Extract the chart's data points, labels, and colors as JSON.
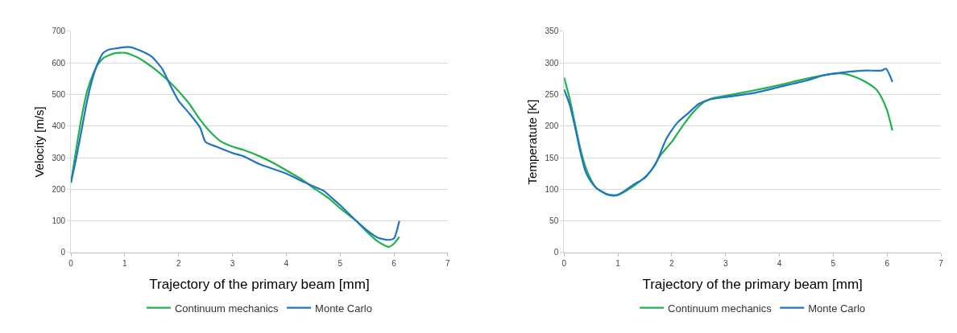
{
  "chart_data": [
    {
      "type": "line",
      "xlabel": "Trajectory of the primary beam [mm]",
      "ylabel": "Velocity [m/s]",
      "xlim": [
        0,
        7
      ],
      "xticks": [
        0,
        1,
        2,
        3,
        4,
        5,
        6,
        7
      ],
      "ylim": [
        0,
        700
      ],
      "yticks": [
        0,
        100,
        200,
        300,
        400,
        500,
        600,
        700
      ],
      "grid": "y",
      "legend": "bottom",
      "marker": "none",
      "line_style": "solid",
      "series": [
        {
          "name": "Continuum mechanics",
          "color": "#22b14c",
          "x": [
            0,
            0.1,
            0.2,
            0.3,
            0.4,
            0.5,
            0.6,
            0.8,
            1.0,
            1.2,
            1.4,
            1.6,
            1.8,
            2.0,
            2.2,
            2.4,
            2.6,
            2.8,
            3.0,
            3.2,
            3.5,
            3.8,
            4.0,
            4.3,
            4.5,
            4.8,
            5.0,
            5.3,
            5.5,
            5.7,
            5.9,
            6.0,
            6.1
          ],
          "values": [
            220,
            330,
            430,
            510,
            560,
            595,
            615,
            630,
            632,
            620,
            600,
            575,
            545,
            510,
            470,
            420,
            380,
            350,
            335,
            325,
            305,
            280,
            260,
            230,
            205,
            170,
            140,
            100,
            65,
            35,
            18,
            28,
            50
          ]
        },
        {
          "name": "Monte Carlo",
          "color": "#1f74c4",
          "x": [
            0,
            0.1,
            0.2,
            0.3,
            0.4,
            0.5,
            0.6,
            0.7,
            0.8,
            1.0,
            1.1,
            1.3,
            1.5,
            1.7,
            1.8,
            2.0,
            2.2,
            2.4,
            2.5,
            2.7,
            3.0,
            3.2,
            3.5,
            3.8,
            4.0,
            4.3,
            4.5,
            4.7,
            4.8,
            5.0,
            5.3,
            5.5,
            5.7,
            5.9,
            6.0,
            6.1
          ],
          "values": [
            222,
            300,
            390,
            480,
            550,
            600,
            632,
            642,
            645,
            650,
            650,
            638,
            620,
            580,
            545,
            480,
            440,
            395,
            350,
            335,
            315,
            305,
            280,
            262,
            250,
            225,
            210,
            195,
            180,
            150,
            100,
            70,
            47,
            40,
            45,
            100
          ]
        }
      ]
    },
    {
      "type": "line",
      "xlabel": "Trajectory of the primary beam [mm]",
      "ylabel": "Temperatute [K]",
      "xlim": [
        0,
        7
      ],
      "xticks": [
        0,
        1,
        2,
        3,
        4,
        5,
        6,
        7
      ],
      "ylim": [
        0,
        350
      ],
      "yticks": [
        0,
        50,
        100,
        150,
        200,
        250,
        300,
        350
      ],
      "grid": "y",
      "legend": "bottom",
      "marker": "none",
      "line_style": "solid",
      "series": [
        {
          "name": "Continuum mechanics",
          "color": "#22b14c",
          "x": [
            0,
            0.1,
            0.2,
            0.3,
            0.4,
            0.5,
            0.6,
            0.8,
            1.0,
            1.2,
            1.4,
            1.6,
            1.8,
            2.0,
            2.2,
            2.4,
            2.6,
            2.8,
            3.0,
            3.5,
            4.0,
            4.5,
            5.0,
            5.2,
            5.4,
            5.6,
            5.8,
            5.9,
            6.0,
            6.1
          ],
          "values": [
            277,
            245,
            205,
            165,
            135,
            115,
            102,
            92,
            91,
            100,
            112,
            128,
            155,
            175,
            200,
            222,
            238,
            245,
            248,
            256,
            265,
            275,
            283,
            283,
            278,
            270,
            258,
            245,
            225,
            193
          ]
        },
        {
          "name": "Monte Carlo",
          "color": "#1f74c4",
          "x": [
            0,
            0.1,
            0.2,
            0.3,
            0.4,
            0.5,
            0.6,
            0.8,
            0.95,
            1.1,
            1.3,
            1.5,
            1.7,
            1.9,
            2.1,
            2.3,
            2.5,
            2.7,
            3.0,
            3.5,
            4.0,
            4.5,
            4.8,
            5.0,
            5.3,
            5.6,
            5.9,
            5.98,
            6.1
          ],
          "values": [
            258,
            235,
            200,
            160,
            128,
            112,
            102,
            92,
            90,
            96,
            108,
            118,
            140,
            180,
            205,
            220,
            235,
            242,
            246,
            252,
            262,
            272,
            280,
            283,
            286,
            288,
            288,
            291,
            270
          ]
        }
      ]
    }
  ]
}
